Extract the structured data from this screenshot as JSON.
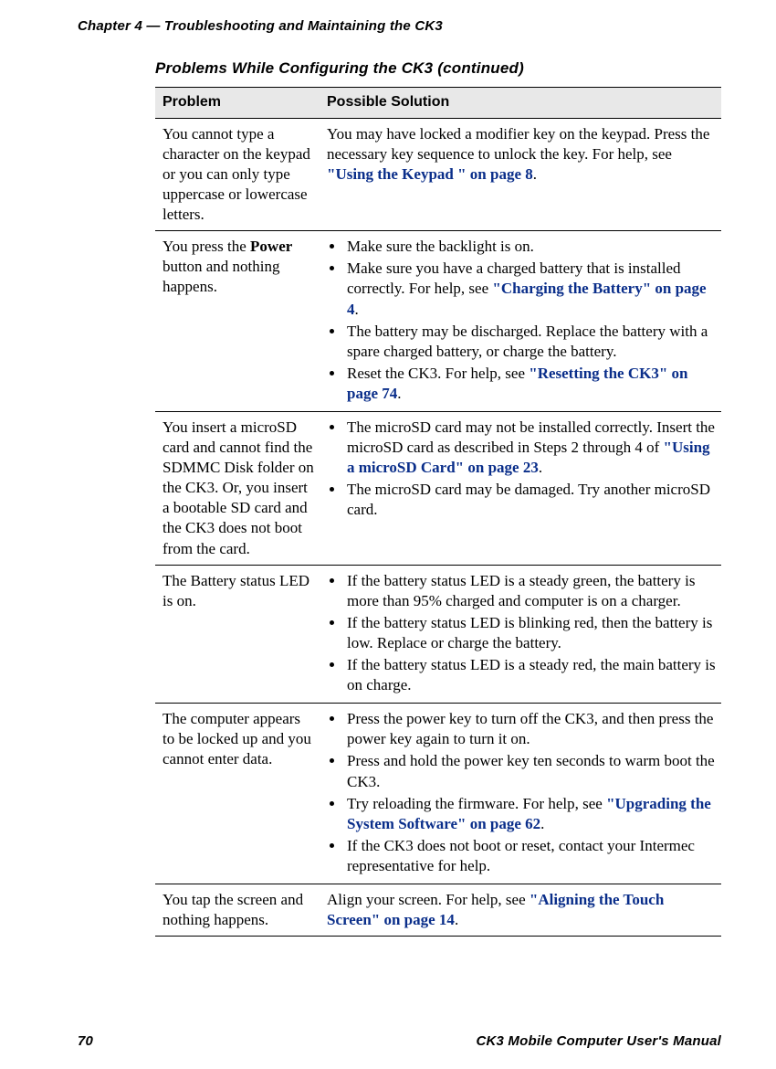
{
  "header": {
    "chapter": "Chapter 4 — Troubleshooting and Maintaining the CK3"
  },
  "table": {
    "title": "Problems While Configuring the CK3 (continued)",
    "columns": {
      "problem": "Problem",
      "solution": "Possible Solution"
    },
    "rows": [
      {
        "problem": "You cannot type a character on the keypad or you can only type uppercase or lowercase letters.",
        "solution_plain_pre": "You may have locked a modifier key on the keypad. Press the necessary key sequence to unlock the key. For help, see ",
        "solution_link": "\"Using the Keypad \" on page 8",
        "solution_plain_post": "."
      },
      {
        "problem_pre": "You press the ",
        "problem_bold": "Power",
        "problem_post": " button and nothing happens.",
        "bullets": [
          {
            "t": "Make sure the backlight is on."
          },
          {
            "pre": "Make sure you have a charged battery that is installed correctly. For help, see ",
            "link": "\"Charging the Battery\" on page 4",
            "post": "."
          },
          {
            "t": "The battery may be discharged. Replace the battery with a spare charged battery, or charge the battery."
          },
          {
            "pre": "Reset the CK3. For help, see ",
            "link": "\"Resetting the CK3\" on page 74",
            "post": "."
          }
        ]
      },
      {
        "problem": "You insert a microSD card and cannot find the SDMMC Disk folder on the CK3. Or, you insert a bootable SD card and the CK3 does not boot from the card.",
        "bullets": [
          {
            "pre": "The microSD card may not be installed correctly. Insert the microSD card as described in Steps 2 through 4 of ",
            "link": "\"Using a microSD Card\" on page 23",
            "post": "."
          },
          {
            "t": "The microSD card may be damaged. Try another microSD card."
          }
        ]
      },
      {
        "problem": "The Battery status LED is on.",
        "bullets": [
          {
            "t": "If the battery status LED is a steady green, the battery is more than 95% charged and computer is on a charger."
          },
          {
            "t": "If the battery status LED is blinking red, then the battery is low. Replace or charge the battery."
          },
          {
            "t": "If the battery status LED is a steady red, the main battery is on charge."
          }
        ]
      },
      {
        "problem": "The computer appears to be locked up and you cannot enter data.",
        "bullets": [
          {
            "t": "Press the power key to turn off the CK3, and then press the power key again to turn it on."
          },
          {
            "t": "Press and hold the power key ten seconds to warm boot the CK3."
          },
          {
            "pre": "Try reloading the firmware. For help, see ",
            "link": "\"Upgrading the System Software\" on page 62",
            "post": "."
          },
          {
            "t": "If the CK3 does not boot or reset, contact your Intermec representative for help."
          }
        ]
      },
      {
        "problem": "You tap the screen and nothing happens.",
        "solution_plain_pre": "Align your screen. For help, see ",
        "solution_link": "\"Aligning the Touch Screen\" on page 14",
        "solution_plain_post": "."
      }
    ]
  },
  "footer": {
    "page_num": "70",
    "doc_title": "CK3 Mobile Computer User's Manual"
  }
}
